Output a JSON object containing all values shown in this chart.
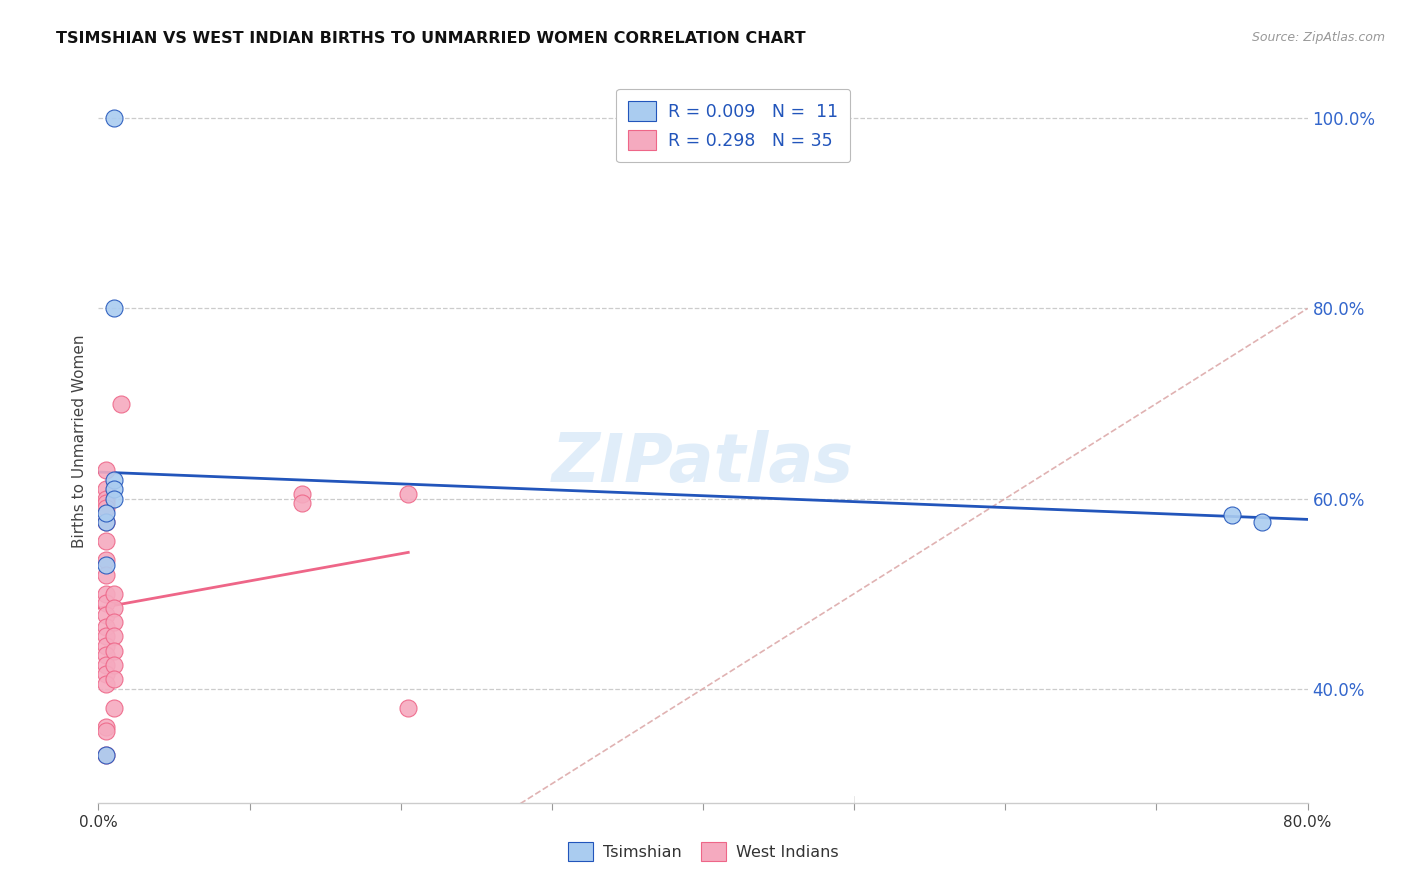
{
  "title": "TSIMSHIAN VS WEST INDIAN BIRTHS TO UNMARRIED WOMEN CORRELATION CHART",
  "source": "Source: ZipAtlas.com",
  "ylabel": "Births to Unmarried Women",
  "watermark": "ZIPatlas",
  "background_color": "#ffffff",
  "tsimshian_x": [
    0.01,
    0.01,
    0.01,
    0.01,
    0.01,
    0.005,
    0.005,
    0.005,
    0.75,
    0.77,
    0.005
  ],
  "tsimshian_y": [
    1.0,
    0.8,
    0.62,
    0.61,
    0.6,
    0.575,
    0.53,
    0.585,
    0.583,
    0.575,
    0.33
  ],
  "west_indian_x": [
    0.015,
    0.005,
    0.005,
    0.005,
    0.005,
    0.005,
    0.005,
    0.005,
    0.005,
    0.005,
    0.005,
    0.005,
    0.005,
    0.005,
    0.005,
    0.005,
    0.005,
    0.005,
    0.005,
    0.005,
    0.01,
    0.01,
    0.01,
    0.01,
    0.01,
    0.01,
    0.01,
    0.01,
    0.005,
    0.135,
    0.135,
    0.205,
    0.205,
    0.005,
    0.005
  ],
  "west_indian_y": [
    0.7,
    0.63,
    0.61,
    0.6,
    0.595,
    0.59,
    0.575,
    0.555,
    0.535,
    0.52,
    0.5,
    0.49,
    0.478,
    0.465,
    0.455,
    0.445,
    0.435,
    0.425,
    0.415,
    0.405,
    0.5,
    0.485,
    0.47,
    0.455,
    0.44,
    0.425,
    0.41,
    0.38,
    0.36,
    0.605,
    0.595,
    0.605,
    0.38,
    0.33,
    0.355
  ],
  "tsimshian_color": "#aaccf0",
  "west_indian_color": "#f5aabf",
  "tsimshian_line_color": "#2255bb",
  "west_indian_line_color": "#ee6688",
  "diagonal_color": "#ddaaaa",
  "tsimshian_R": "0.009",
  "tsimshian_N": "11",
  "west_indian_R": "0.298",
  "west_indian_N": "35",
  "xlim": [
    0.0,
    0.8
  ],
  "ylim": [
    0.28,
    1.04
  ],
  "yticks": [
    0.4,
    0.6,
    0.8,
    1.0
  ],
  "ytick_labels": [
    "40.0%",
    "60.0%",
    "80.0%",
    "100.0%"
  ]
}
